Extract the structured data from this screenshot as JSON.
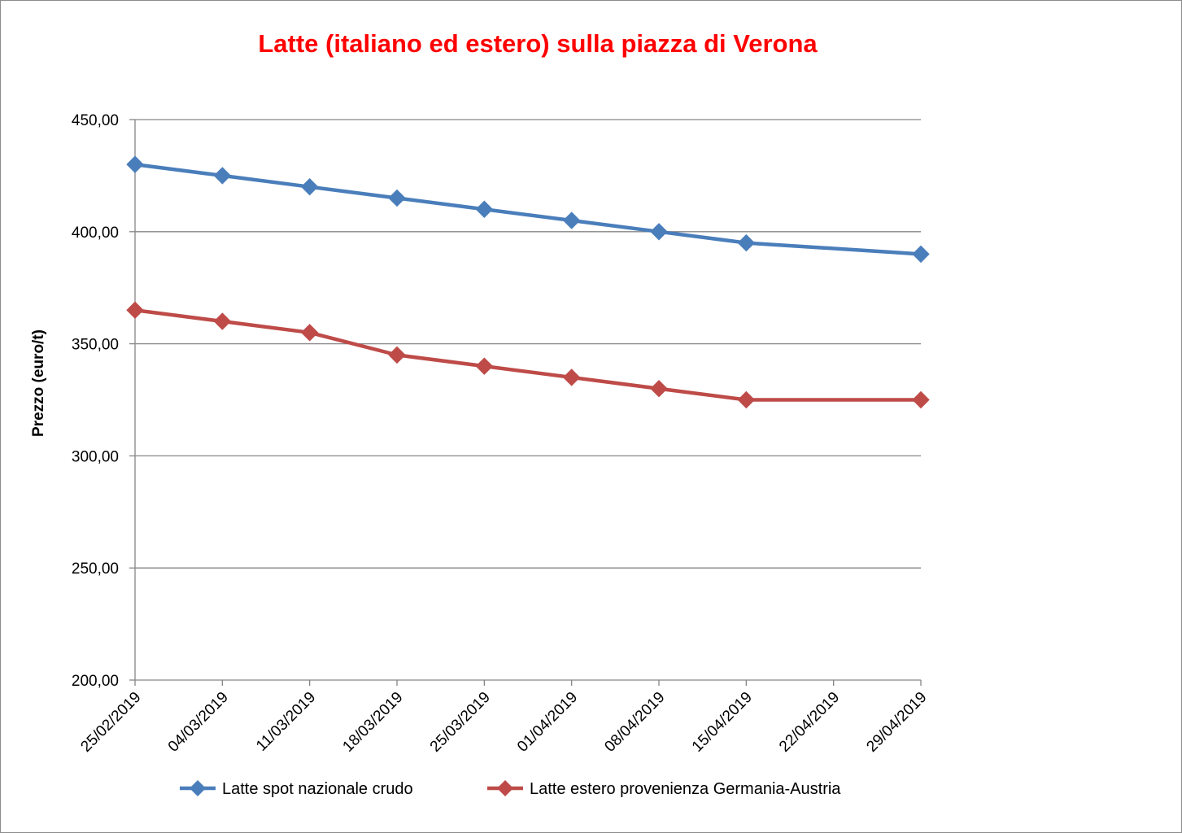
{
  "chart_data": {
    "type": "line",
    "title": "Latte (italiano ed estero) sulla piazza di Verona",
    "title_color": "#ff0000",
    "ylabel": "Prezzo (euro/t)",
    "xlabel": "",
    "ylim": [
      200,
      450
    ],
    "y_ticks": [
      "200,00",
      "250,00",
      "300,00",
      "350,00",
      "400,00",
      "450,00"
    ],
    "y_tick_values": [
      200,
      250,
      300,
      350,
      400,
      450
    ],
    "categories": [
      "25/02/2019",
      "04/03/2019",
      "11/03/2019",
      "18/03/2019",
      "25/03/2019",
      "01/04/2019",
      "08/04/2019",
      "15/04/2019",
      "22/04/2019",
      "29/04/2019"
    ],
    "x_values": [
      "25/02/2019",
      "04/03/2019",
      "11/03/2019",
      "18/03/2019",
      "25/03/2019",
      "01/04/2019",
      "08/04/2019",
      "15/04/2019",
      "29/04/2019"
    ],
    "grid": "horizontal",
    "legend_position": "bottom",
    "series": [
      {
        "name": "Latte spot nazionale crudo",
        "color": "#4a7ebb",
        "values": [
          430,
          425,
          420,
          415,
          410,
          405,
          400,
          395,
          390
        ]
      },
      {
        "name": "Latte estero provenienza Germania-Austria",
        "color": "#be4b48",
        "values": [
          365,
          360,
          355,
          345,
          340,
          335,
          330,
          325,
          325
        ]
      }
    ]
  }
}
